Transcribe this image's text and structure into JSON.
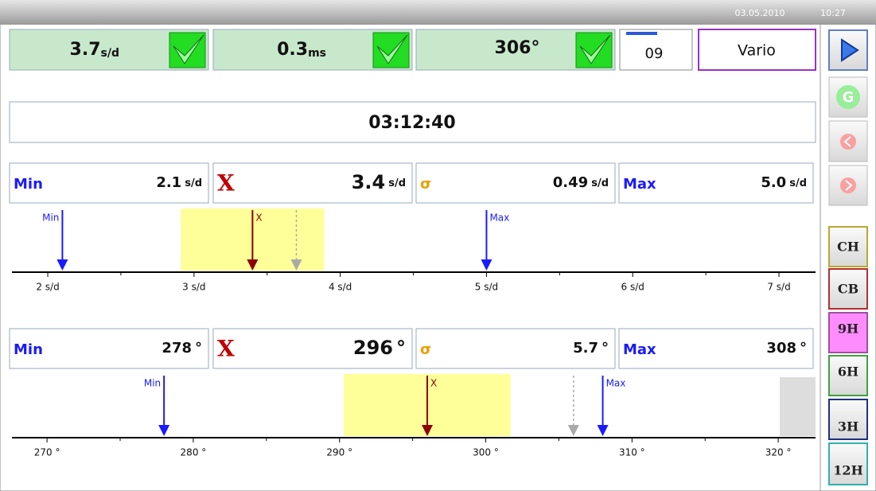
{
  "header": {
    "date": "03.05.2010",
    "time": "10:27"
  },
  "readings": [
    {
      "value": 3.7,
      "unit": "s/d"
    },
    {
      "value": 0.3,
      "unit": "ms"
    },
    {
      "value": 306,
      "unit": "°"
    }
  ],
  "counter": "09",
  "mode": "Vario",
  "timer": "03:12:40",
  "panels": [
    {
      "stats": [
        {
          "label": "Min",
          "value": 2.1,
          "unit": "s/d"
        },
        {
          "label": "X",
          "value": 3.4,
          "unit": "s/d"
        },
        {
          "label": "σ",
          "value": 0.49,
          "unit": "s/d"
        },
        {
          "label": "Max",
          "value": 5,
          "value_label": "5.0",
          "unit": "s/d"
        }
      ],
      "arrow_labels": {
        "min": "Min",
        "mean": "X",
        "max": "Max"
      },
      "xlim": [
        1.755,
        7.25
      ],
      "ticks": [
        {
          "value": 2,
          "label": "2 s/d"
        },
        {
          "value": 3,
          "label": "3 s/d"
        },
        {
          "value": 4,
          "label": "4 s/d"
        },
        {
          "value": 5,
          "label": "5 s/d"
        },
        {
          "value": 6,
          "label": "6 s/d"
        },
        {
          "value": 7,
          "label": "7 s/d"
        }
      ]
    },
    {
      "stats": [
        {
          "label": "Min",
          "value": 278,
          "unit": "°"
        },
        {
          "label": "X",
          "value": 296,
          "unit": "°"
        },
        {
          "label": "σ",
          "value": 5.7,
          "unit": "°"
        },
        {
          "label": "Max",
          "value": 308,
          "unit": "°"
        }
      ],
      "arrow_labels": {
        "min": "Min",
        "mean": "X",
        "max": "Max"
      },
      "xlim": [
        267.6,
        322.55
      ],
      "ticks": [
        {
          "value": 270,
          "label": "270 °"
        },
        {
          "value": 280,
          "label": "280 °"
        },
        {
          "value": 290,
          "label": "290 °"
        },
        {
          "value": 300,
          "label": "300 °"
        },
        {
          "value": 310,
          "label": "310 °"
        },
        {
          "value": 320,
          "label": "320 °"
        }
      ]
    }
  ],
  "buttons": [
    "CH",
    "CB",
    "9H",
    "6H",
    "3H",
    "12H"
  ]
}
